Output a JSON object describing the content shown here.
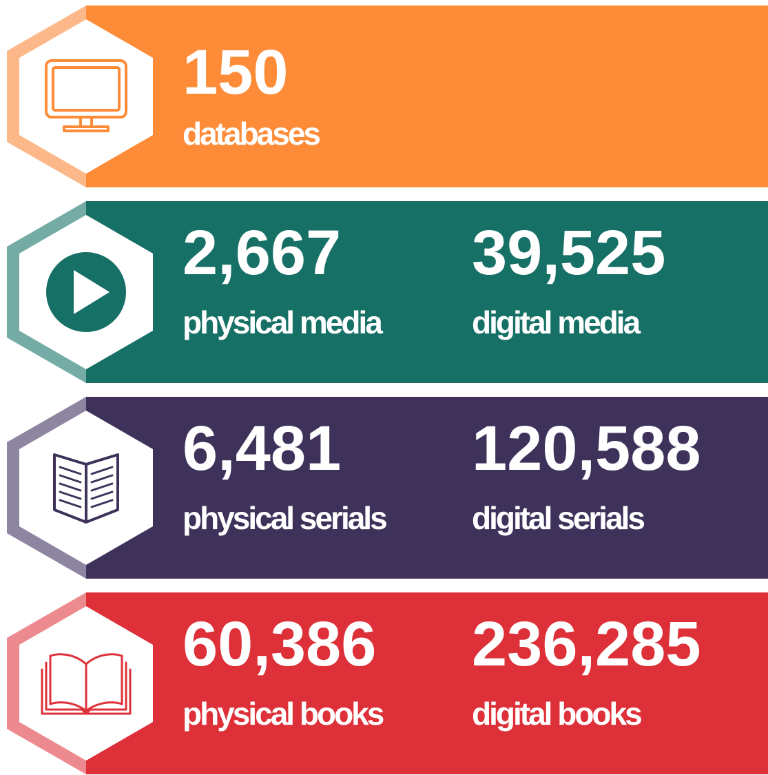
{
  "rows": [
    {
      "color": "#fd8b37",
      "light": "#fdb88a",
      "stats": [
        {
          "number": "150",
          "label": "databases"
        }
      ]
    },
    {
      "color": "#167066",
      "light": "#74aca5",
      "stats": [
        {
          "number": "2,667",
          "label": "physical media"
        },
        {
          "number": "39,525",
          "label": "digital media"
        }
      ]
    },
    {
      "color": "#3e325b",
      "light": "#8e86a1",
      "stats": [
        {
          "number": "6,481",
          "label": "physical serials"
        },
        {
          "number": "120,588",
          "label": "digital serials"
        }
      ]
    },
    {
      "color": "#dd3038",
      "light": "#ec8a8f",
      "stats": [
        {
          "number": "60,386",
          "label": "physical books"
        },
        {
          "number": "236,285",
          "label": "digital books"
        }
      ]
    }
  ]
}
